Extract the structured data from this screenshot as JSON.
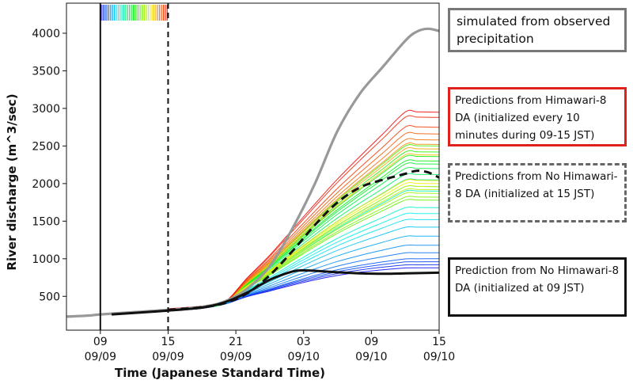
{
  "chart_data": {
    "type": "line",
    "title": "",
    "xlabel": "Time (Japanese Standard Time)",
    "ylabel": "River discharge (m^3/sec)",
    "xlim": [
      -3,
      30
    ],
    "ylim": [
      50,
      4400
    ],
    "x_ticks": [
      {
        "x": 0,
        "label_top": "09",
        "label_bottom": "09/09"
      },
      {
        "x": 6,
        "label_top": "15",
        "label_bottom": "09/09"
      },
      {
        "x": 12,
        "label_top": "21",
        "label_bottom": "09/09"
      },
      {
        "x": 18,
        "label_top": "03",
        "label_bottom": "09/10"
      },
      {
        "x": 24,
        "label_top": "09",
        "label_bottom": "09/10"
      },
      {
        "x": 30,
        "label_top": "15",
        "label_bottom": "09/10"
      }
    ],
    "y_ticks": [
      500,
      1000,
      1500,
      2000,
      2500,
      3000,
      3500,
      4000
    ],
    "vlines": [
      {
        "x": 0,
        "style": "solid",
        "color": "#111111"
      },
      {
        "x": 6,
        "style": "dashed",
        "color": "#111111"
      }
    ],
    "series": [
      {
        "role": "observed",
        "color": "#999999",
        "x": [
          -3,
          -1,
          0,
          3,
          6,
          9,
          11,
          13,
          15,
          17,
          19,
          21,
          23,
          25,
          27,
          28,
          29,
          30
        ],
        "y": [
          230,
          245,
          260,
          290,
          320,
          360,
          430,
          600,
          900,
          1400,
          2000,
          2700,
          3200,
          3550,
          3900,
          4020,
          4060,
          4030
        ]
      },
      {
        "role": "nodata-15",
        "color": "#111111",
        "x": [
          6,
          9,
          11,
          13,
          15,
          17,
          19,
          21,
          23,
          25,
          27,
          28,
          29,
          30
        ],
        "y": [
          320,
          355,
          410,
          540,
          780,
          1100,
          1450,
          1750,
          1950,
          2050,
          2130,
          2170,
          2150,
          2080
        ]
      },
      {
        "role": "nodata-09",
        "color": "#111111",
        "x": [
          1,
          3,
          6,
          9,
          11,
          13,
          15,
          17,
          18,
          19,
          21,
          23,
          25,
          27,
          30
        ],
        "y": [
          260,
          280,
          310,
          350,
          420,
          550,
          720,
          830,
          845,
          840,
          820,
          805,
          800,
          805,
          815
        ]
      }
    ],
    "ensemble_count": 36
  },
  "legend": {
    "observed": "simulated from observed precipitation",
    "da": "Predictions from Himawari-8 DA (initialized every 10 minutes during 09-15 JST)",
    "noda15": "Predictions from No Himawari-8 DA (initialized at 15 JST)",
    "noda09": "Prediction from No Himawari-8 DA (initialized at 09 JST)"
  },
  "colors": {
    "observed": "#999999",
    "da_border": "#e0201b",
    "nodata": "#111111"
  }
}
